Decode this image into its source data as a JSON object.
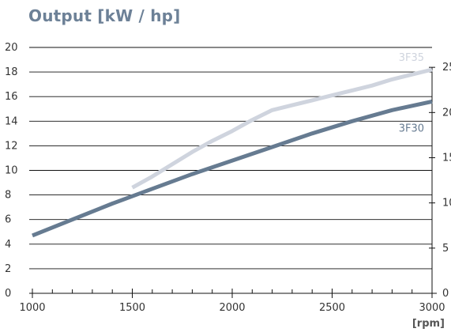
{
  "chart_data": {
    "type": "line",
    "title": "Output [kW / hp]",
    "xlabel": "[rpm]",
    "ylabel": "",
    "x_ticks": [
      "1000",
      "1500",
      "2000",
      "2500",
      "3000"
    ],
    "xlim": [
      1000,
      3000
    ],
    "ylim": [
      0,
      20
    ],
    "y_ticks_left": [
      "0",
      "2",
      "4",
      "6",
      "8",
      "10",
      "12",
      "14",
      "16",
      "18",
      "20"
    ],
    "y_ticks_right": [
      "0",
      "5",
      "10",
      "15",
      "20",
      "25"
    ],
    "y_right_lim": [
      0,
      27.2
    ],
    "grid": "horizontal",
    "series": [
      {
        "name": "3F35",
        "color": "#cfd4de",
        "x": [
          1500,
          1600,
          1700,
          1800,
          1900,
          2000,
          2100,
          2200,
          2300,
          2400,
          2500,
          2600,
          2700,
          2800,
          2900,
          3000
        ],
        "values": [
          8.6,
          9.5,
          10.5,
          11.5,
          12.4,
          13.2,
          14.1,
          14.9,
          15.3,
          15.7,
          16.1,
          16.5,
          16.9,
          17.4,
          17.8,
          18.2
        ]
      },
      {
        "name": "3F30",
        "color": "#667b91",
        "x": [
          1000,
          1200,
          1400,
          1500,
          1600,
          1800,
          2000,
          2200,
          2400,
          2600,
          2800,
          3000
        ],
        "values": [
          4.7,
          6.0,
          7.3,
          7.9,
          8.5,
          9.7,
          10.8,
          11.9,
          13.0,
          14.0,
          14.9,
          15.6
        ]
      }
    ]
  }
}
